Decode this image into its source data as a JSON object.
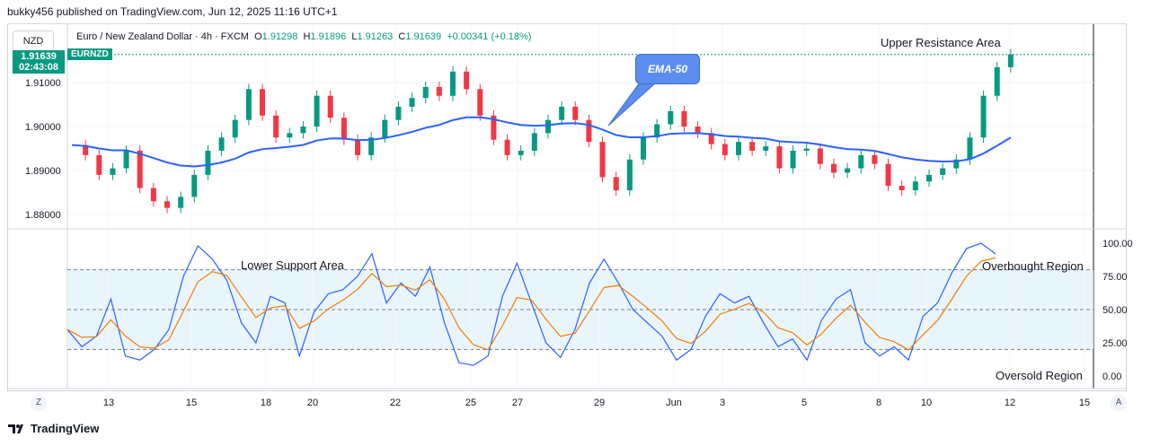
{
  "header": {
    "published": "bukky456 published on TradingView.com, Jun 12, 2025 11:16 UTC+1"
  },
  "symbol": {
    "currency": "NZD",
    "title": "Euro / New Zealand Dollar · 4h · FXCM",
    "o_label": "O",
    "o": "1.91298",
    "h_label": "H",
    "h": "1.91896",
    "l_label": "L",
    "l": "1.91263",
    "c_label": "C",
    "c": "1.91639",
    "change": "+0.00341 (+0.18%)",
    "ticker": "EURNZD",
    "last_price": "1.91639",
    "countdown": "02:43:08"
  },
  "annotations": {
    "ema": "EMA-50",
    "upper": "Upper Resistance Area",
    "lower": "Lower Support Area",
    "overbought": "Overbought Region",
    "oversold": "Oversold Region"
  },
  "price_axis": [
    "1.91000",
    "1.90000",
    "1.89000",
    "1.88000"
  ],
  "osc_axis": [
    "100.00",
    "75.00",
    "50.00",
    "25.00",
    "0.00"
  ],
  "time_axis": [
    "13",
    "15",
    "18",
    "20",
    "22",
    "25",
    "27",
    "29",
    "Jun",
    "3",
    "5",
    "8",
    "10",
    "12",
    "15"
  ],
  "footer": {
    "zoom_left": "Z",
    "zoom_right": "A",
    "brand": "TradingView"
  },
  "colors": {
    "up": "#089981",
    "down": "#f23645",
    "ema": "#2962ff",
    "k": "#2962ff",
    "d": "#f57c00",
    "band": "#e3f2fd"
  }
}
